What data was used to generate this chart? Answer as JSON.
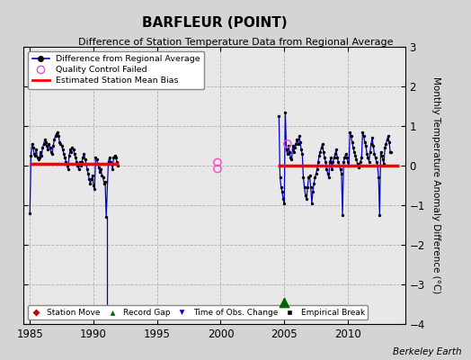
{
  "title": "BARFLEUR (POINT)",
  "subtitle": "Difference of Station Temperature Data from Regional Average",
  "ylabel": "Monthly Temperature Anomaly Difference (°C)",
  "credit": "Berkeley Earth",
  "xlim": [
    1984.5,
    2014.5
  ],
  "ylim": [
    -4,
    3
  ],
  "yticks": [
    -4,
    -3,
    -2,
    -1,
    0,
    1,
    2,
    3
  ],
  "xticks": [
    1985,
    1990,
    1995,
    2000,
    2005,
    2010
  ],
  "bg_color": "#d4d4d4",
  "plot_bg": "#e8e8e8",
  "line_color": "#0000cc",
  "bias_color": "#ff0000",
  "bias1_y": 0.05,
  "bias1_xstart": 1985.0,
  "bias1_xend": 1992.0,
  "bias2_y": 0.0,
  "bias2_xstart": 2004.5,
  "bias2_xend": 2014.0,
  "record_gap_x": 2005.0,
  "record_gap_y": -3.45,
  "spike_x": 1991.083,
  "spike_ymin": -3.7,
  "spike_ymax": -1.3,
  "seg1_data": [
    [
      1985.0,
      -1.2
    ],
    [
      1985.083,
      0.25
    ],
    [
      1985.167,
      0.55
    ],
    [
      1985.25,
      0.45
    ],
    [
      1985.333,
      0.3
    ],
    [
      1985.417,
      0.25
    ],
    [
      1985.5,
      0.4
    ],
    [
      1985.583,
      0.2
    ],
    [
      1985.667,
      0.15
    ],
    [
      1985.75,
      0.2
    ],
    [
      1985.833,
      0.35
    ],
    [
      1985.917,
      0.25
    ],
    [
      1986.0,
      0.45
    ],
    [
      1986.083,
      0.55
    ],
    [
      1986.167,
      0.65
    ],
    [
      1986.25,
      0.6
    ],
    [
      1986.333,
      0.5
    ],
    [
      1986.417,
      0.4
    ],
    [
      1986.5,
      0.55
    ],
    [
      1986.583,
      0.45
    ],
    [
      1986.667,
      0.35
    ],
    [
      1986.75,
      0.3
    ],
    [
      1986.833,
      0.5
    ],
    [
      1986.917,
      0.65
    ],
    [
      1987.0,
      0.75
    ],
    [
      1987.083,
      0.8
    ],
    [
      1987.167,
      0.85
    ],
    [
      1987.25,
      0.75
    ],
    [
      1987.333,
      0.6
    ],
    [
      1987.417,
      0.55
    ],
    [
      1987.5,
      0.5
    ],
    [
      1987.583,
      0.4
    ],
    [
      1987.667,
      0.3
    ],
    [
      1987.75,
      0.2
    ],
    [
      1987.833,
      0.1
    ],
    [
      1987.917,
      0.0
    ],
    [
      1988.0,
      -0.1
    ],
    [
      1988.083,
      0.25
    ],
    [
      1988.167,
      0.4
    ],
    [
      1988.25,
      0.35
    ],
    [
      1988.333,
      0.45
    ],
    [
      1988.417,
      0.4
    ],
    [
      1988.5,
      0.3
    ],
    [
      1988.583,
      0.2
    ],
    [
      1988.667,
      0.1
    ],
    [
      1988.75,
      0.0
    ],
    [
      1988.833,
      -0.1
    ],
    [
      1988.917,
      0.1
    ],
    [
      1989.0,
      0.0
    ],
    [
      1989.083,
      0.1
    ],
    [
      1989.167,
      0.2
    ],
    [
      1989.25,
      0.3
    ],
    [
      1989.333,
      0.15
    ],
    [
      1989.417,
      0.05
    ],
    [
      1989.5,
      -0.1
    ],
    [
      1989.583,
      -0.2
    ],
    [
      1989.667,
      -0.35
    ],
    [
      1989.75,
      -0.45
    ],
    [
      1989.833,
      -0.35
    ],
    [
      1989.917,
      -0.25
    ],
    [
      1990.0,
      -0.5
    ],
    [
      1990.083,
      -0.6
    ],
    [
      1990.167,
      0.2
    ],
    [
      1990.25,
      0.15
    ],
    [
      1990.333,
      0.05
    ],
    [
      1990.417,
      -0.05
    ],
    [
      1990.5,
      -0.15
    ],
    [
      1990.583,
      -0.1
    ],
    [
      1990.667,
      -0.25
    ],
    [
      1990.75,
      -0.3
    ],
    [
      1990.833,
      -0.45
    ],
    [
      1990.917,
      -0.4
    ],
    [
      1991.0,
      -1.3
    ],
    [
      1991.167,
      0.1
    ],
    [
      1991.25,
      0.2
    ],
    [
      1991.333,
      0.1
    ],
    [
      1991.417,
      0.05
    ],
    [
      1991.5,
      -0.1
    ],
    [
      1991.583,
      0.2
    ],
    [
      1991.667,
      0.25
    ],
    [
      1991.75,
      0.2
    ],
    [
      1991.833,
      0.1
    ],
    [
      1991.917,
      0.0
    ]
  ],
  "seg2_data": [
    [
      2004.583,
      1.25
    ],
    [
      2004.667,
      -0.3
    ],
    [
      2004.75,
      -0.55
    ],
    [
      2004.833,
      -0.65
    ],
    [
      2004.917,
      -0.85
    ],
    [
      2005.0,
      -0.95
    ],
    [
      2005.083,
      1.35
    ],
    [
      2005.167,
      0.4
    ],
    [
      2005.25,
      0.3
    ],
    [
      2005.333,
      0.5
    ],
    [
      2005.417,
      0.35
    ],
    [
      2005.5,
      0.2
    ],
    [
      2005.583,
      0.15
    ],
    [
      2005.667,
      0.5
    ],
    [
      2005.75,
      0.35
    ],
    [
      2005.833,
      0.45
    ],
    [
      2005.917,
      0.55
    ],
    [
      2006.0,
      0.65
    ],
    [
      2006.083,
      0.55
    ],
    [
      2006.167,
      0.75
    ],
    [
      2006.25,
      0.6
    ],
    [
      2006.333,
      0.4
    ],
    [
      2006.417,
      0.3
    ],
    [
      2006.5,
      -0.3
    ],
    [
      2006.583,
      -0.55
    ],
    [
      2006.667,
      -0.75
    ],
    [
      2006.75,
      -0.85
    ],
    [
      2006.833,
      -0.55
    ],
    [
      2006.917,
      -0.3
    ],
    [
      2007.0,
      -0.25
    ],
    [
      2007.083,
      -0.55
    ],
    [
      2007.167,
      -0.95
    ],
    [
      2007.25,
      -0.65
    ],
    [
      2007.333,
      -0.45
    ],
    [
      2007.417,
      -0.3
    ],
    [
      2007.5,
      -0.2
    ],
    [
      2007.583,
      -0.1
    ],
    [
      2007.667,
      0.1
    ],
    [
      2007.75,
      0.25
    ],
    [
      2007.833,
      0.35
    ],
    [
      2007.917,
      0.45
    ],
    [
      2008.0,
      0.55
    ],
    [
      2008.083,
      0.35
    ],
    [
      2008.167,
      0.2
    ],
    [
      2008.25,
      0.1
    ],
    [
      2008.333,
      -0.1
    ],
    [
      2008.417,
      -0.2
    ],
    [
      2008.5,
      -0.3
    ],
    [
      2008.583,
      0.1
    ],
    [
      2008.667,
      0.2
    ],
    [
      2008.75,
      -0.1
    ],
    [
      2008.833,
      0.1
    ],
    [
      2008.917,
      0.2
    ],
    [
      2009.0,
      0.3
    ],
    [
      2009.083,
      0.4
    ],
    [
      2009.167,
      0.2
    ],
    [
      2009.25,
      0.1
    ],
    [
      2009.333,
      0.0
    ],
    [
      2009.417,
      -0.1
    ],
    [
      2009.5,
      -0.2
    ],
    [
      2009.583,
      -1.25
    ],
    [
      2009.667,
      0.1
    ],
    [
      2009.75,
      0.2
    ],
    [
      2009.833,
      0.3
    ],
    [
      2009.917,
      0.2
    ],
    [
      2010.0,
      0.1
    ],
    [
      2010.083,
      0.0
    ],
    [
      2010.167,
      0.85
    ],
    [
      2010.25,
      0.75
    ],
    [
      2010.333,
      0.6
    ],
    [
      2010.417,
      0.45
    ],
    [
      2010.5,
      0.35
    ],
    [
      2010.583,
      0.25
    ],
    [
      2010.667,
      0.15
    ],
    [
      2010.75,
      0.05
    ],
    [
      2010.833,
      -0.05
    ],
    [
      2010.917,
      0.0
    ],
    [
      2011.0,
      0.1
    ],
    [
      2011.083,
      0.2
    ],
    [
      2011.167,
      0.85
    ],
    [
      2011.25,
      0.75
    ],
    [
      2011.333,
      0.6
    ],
    [
      2011.417,
      0.5
    ],
    [
      2011.5,
      0.3
    ],
    [
      2011.583,
      0.2
    ],
    [
      2011.667,
      0.1
    ],
    [
      2011.75,
      0.35
    ],
    [
      2011.833,
      0.55
    ],
    [
      2011.917,
      0.7
    ],
    [
      2012.0,
      0.5
    ],
    [
      2012.083,
      0.3
    ],
    [
      2012.167,
      0.2
    ],
    [
      2012.25,
      0.1
    ],
    [
      2012.333,
      0.0
    ],
    [
      2012.417,
      -0.3
    ],
    [
      2012.5,
      -1.25
    ],
    [
      2012.583,
      0.35
    ],
    [
      2012.667,
      0.25
    ],
    [
      2012.75,
      0.15
    ],
    [
      2012.833,
      0.05
    ],
    [
      2012.917,
      0.45
    ],
    [
      2013.0,
      0.55
    ],
    [
      2013.083,
      0.65
    ],
    [
      2013.167,
      0.75
    ],
    [
      2013.25,
      0.6
    ],
    [
      2013.333,
      0.35
    ],
    [
      2013.417,
      0.35
    ]
  ],
  "qc_fail_1_x": 1999.75,
  "qc_fail_1_y1": 0.08,
  "qc_fail_1_y2": -0.08,
  "qc_fail_2_x": 2005.25,
  "qc_fail_2_y": 0.55
}
